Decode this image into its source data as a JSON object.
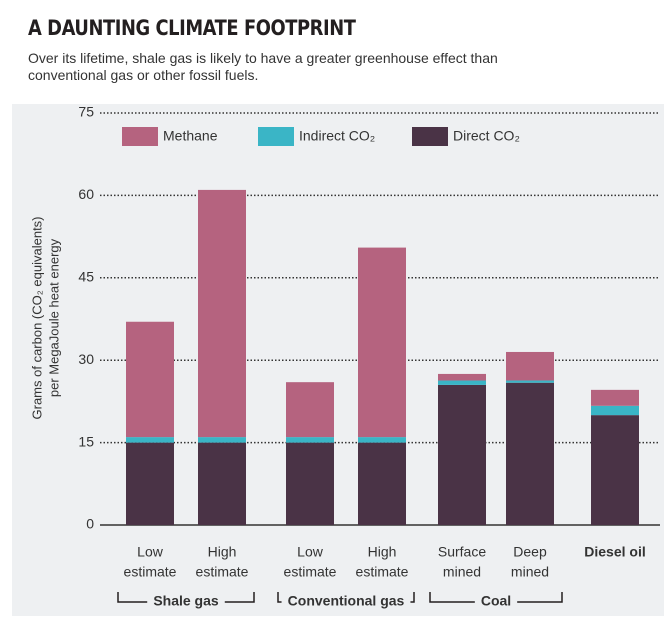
{
  "chart_data": {
    "type": "stacked_bar",
    "title": "A DAUNTING CLIMATE FOOTPRINT",
    "subtitle": "Over its lifetime, shale gas is likely to have a greater greenhouse effect than conventional gas or other fossil fuels.",
    "ylabel": [
      "Grams of carbon (CO₂ equivalents)",
      "per MegaJoule heat energy"
    ],
    "categories": [
      [
        "Low",
        "estimate"
      ],
      [
        "High",
        "estimate"
      ],
      [
        "Low",
        "estimate"
      ],
      [
        "High",
        "estimate"
      ],
      [
        "Surface",
        "mined"
      ],
      [
        "Deep",
        "mined"
      ],
      [
        "Diesel oil"
      ]
    ],
    "category_groups": [
      "Shale gas",
      "Shale gas",
      "Conventional gas",
      "Conventional gas",
      "Coal",
      "Coal",
      null
    ],
    "series": [
      {
        "name": "Methane",
        "color": "#b5637f",
        "values": [
          21,
          45,
          10,
          34.5,
          1.2,
          5.2,
          2.9
        ]
      },
      {
        "name": "Indirect CO₂",
        "color": "#3ab5c6",
        "values": [
          1,
          1,
          1,
          1,
          0.8,
          0.4,
          1.7
        ]
      },
      {
        "name": "Direct CO₂",
        "color": "#4a3346",
        "values": [
          15,
          15,
          15,
          15,
          25.5,
          25.9,
          20
        ]
      }
    ],
    "ylim": [
      0,
      75
    ],
    "yticks": [
      0,
      15,
      30,
      45,
      60,
      75
    ],
    "grid": true
  }
}
